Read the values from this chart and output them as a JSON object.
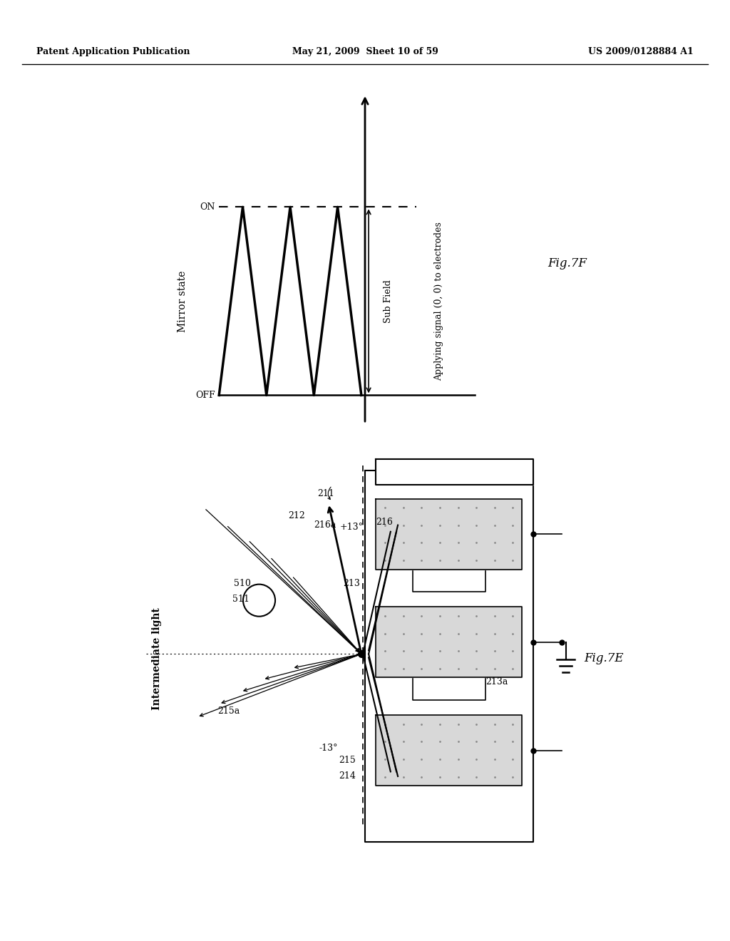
{
  "bg_color": "#ffffff",
  "header_left": "Patent Application Publication",
  "header_center": "May 21, 2009  Sheet 10 of 59",
  "header_right": "US 2009/0128884 A1",
  "fig7e_label": "Fig.7E",
  "fig7f_label": "Fig.7F",
  "header_fontsize": 9,
  "label_fontsize": 9,
  "fig_label_fontsize": 12
}
